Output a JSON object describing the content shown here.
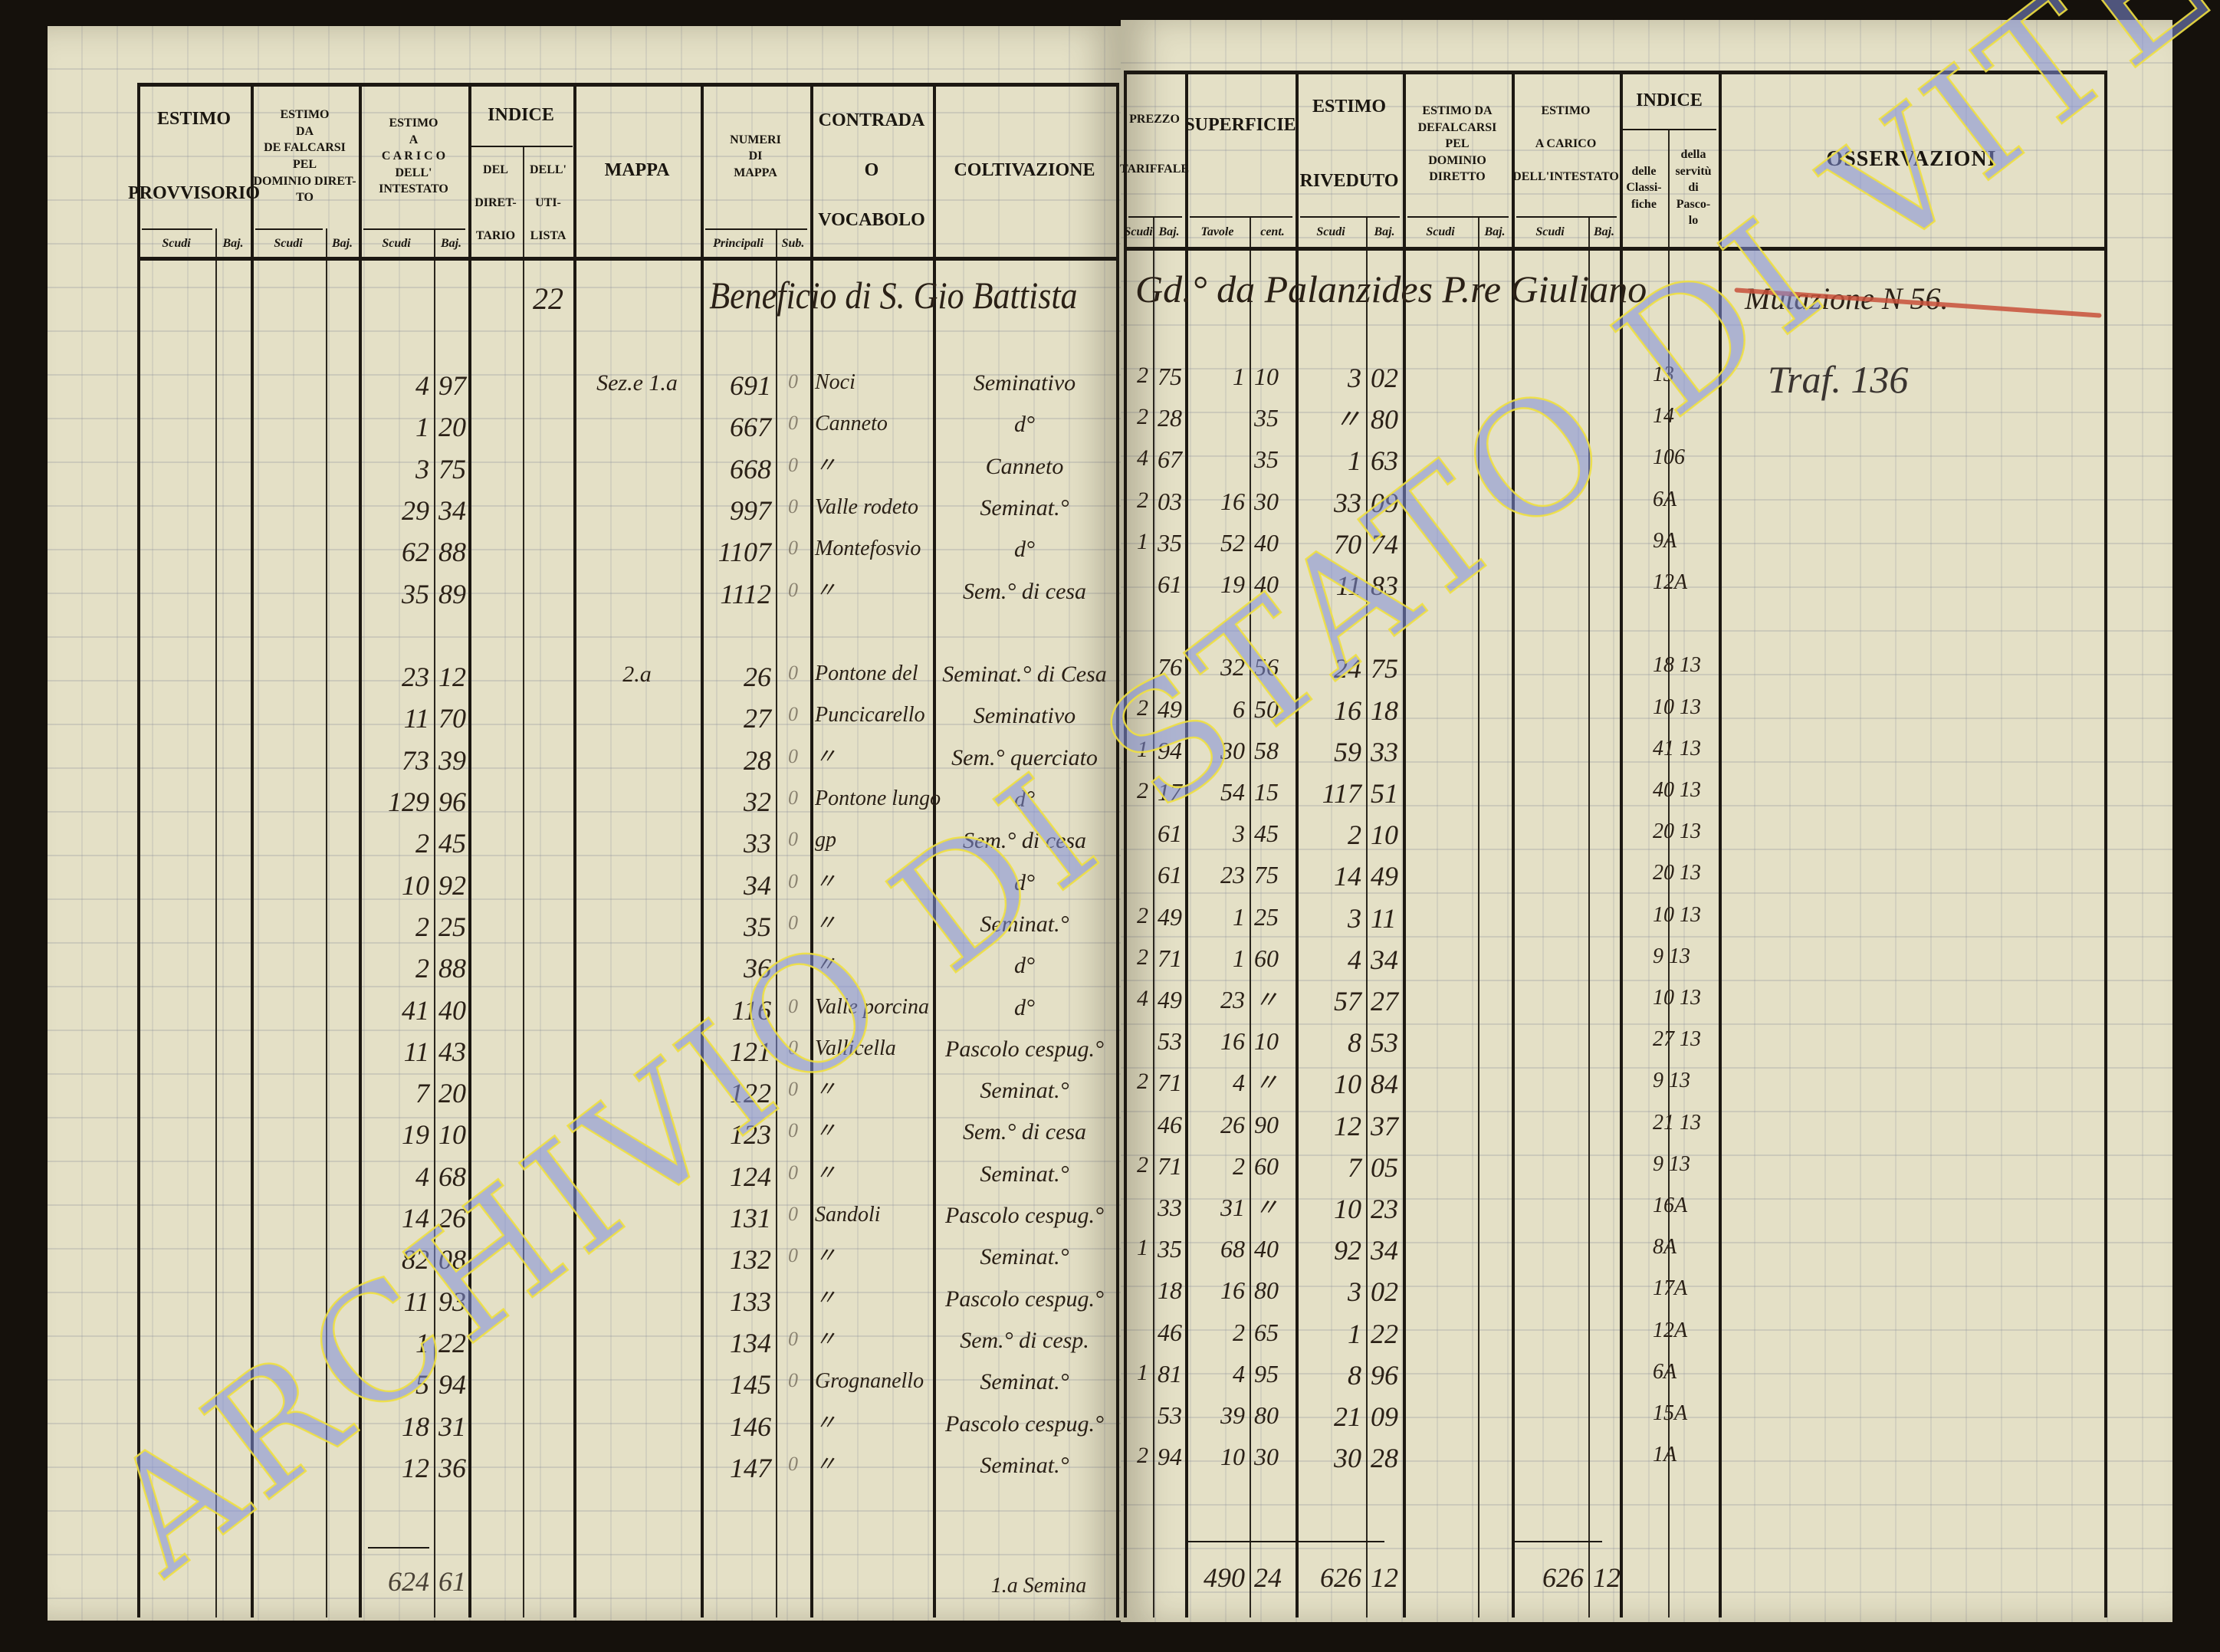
{
  "left_page": {
    "headers": {
      "estimo_provvisorio": "ESTIMO\n\n\nPROVVISORIO",
      "estimo_defalcarsi": "ESTIMO\nDA\nDE FALCARSI\nPEL\nDOMINIO DIRET-\nTO",
      "estimo_carico": "ESTIMO\nA\nC A R I C O\nDELL'\nINTESTATO",
      "indice": "INDICE",
      "indice_direttario": "DEL\n\nDIRET-\n\nTARIO",
      "indice_utilista": "DELL'\n\nUTI-\n\nLISTA",
      "mappa": "MAPPA",
      "numeri_di_mappa": "NUMERI\nDI\nMAPPA",
      "contrada": "CONTRADA\n\nO\n\nVOCABOLO",
      "coltivazione": "COLTIVAZIONE",
      "scudi": "Scudi",
      "baj": "Baj.",
      "principali": "Principali",
      "sub": "Sub."
    },
    "entry_index": "22",
    "entry_title": "Beneficio di S. Gio Battista",
    "rows": [
      {
        "carico_scudi": "4",
        "carico_baj": "97",
        "mappa": "Sez.e 1.a",
        "numero": "691",
        "sub": "0",
        "contrada": "Noci",
        "coltivazione": "Seminativo"
      },
      {
        "carico_scudi": "1",
        "carico_baj": "20",
        "mappa": "",
        "numero": "667",
        "sub": "0",
        "contrada": "Canneto",
        "coltivazione": "d°"
      },
      {
        "carico_scudi": "3",
        "carico_baj": "75",
        "mappa": "",
        "numero": "668",
        "sub": "0",
        "contrada": "〃",
        "coltivazione": "Canneto"
      },
      {
        "carico_scudi": "29",
        "carico_baj": "34",
        "mappa": "",
        "numero": "997",
        "sub": "0",
        "contrada": "Valle rodeto",
        "coltivazione": "Seminat.°"
      },
      {
        "carico_scudi": "62",
        "carico_baj": "88",
        "mappa": "",
        "numero": "1107",
        "sub": "0",
        "contrada": "Montefosvio",
        "coltivazione": "d°"
      },
      {
        "carico_scudi": "35",
        "carico_baj": "89",
        "mappa": "",
        "numero": "1112",
        "sub": "0",
        "contrada": "〃",
        "coltivazione": "Sem.° di cesa"
      },
      {
        "carico_scudi": "23",
        "carico_baj": "12",
        "mappa": "2.a",
        "numero": "26",
        "sub": "0",
        "contrada": "Pontone del",
        "coltivazione": "Seminat.° di Cesa"
      },
      {
        "carico_scudi": "11",
        "carico_baj": "70",
        "mappa": "",
        "numero": "27",
        "sub": "0",
        "contrada": "Puncicarello",
        "coltivazione": "Seminativo"
      },
      {
        "carico_scudi": "73",
        "carico_baj": "39",
        "mappa": "",
        "numero": "28",
        "sub": "0",
        "contrada": "〃",
        "coltivazione": "Sem.° querciato"
      },
      {
        "carico_scudi": "129",
        "carico_baj": "96",
        "mappa": "",
        "numero": "32",
        "sub": "0",
        "contrada": "Pontone lungo",
        "coltivazione": "d°"
      },
      {
        "carico_scudi": "2",
        "carico_baj": "45",
        "mappa": "",
        "numero": "33",
        "sub": "0",
        "contrada": "gp",
        "coltivazione": "Sem.° di cesa"
      },
      {
        "carico_scudi": "10",
        "carico_baj": "92",
        "mappa": "",
        "numero": "34",
        "sub": "0",
        "contrada": "〃",
        "coltivazione": "d°"
      },
      {
        "carico_scudi": "2",
        "carico_baj": "25",
        "mappa": "",
        "numero": "35",
        "sub": "0",
        "contrada": "〃",
        "coltivazione": "Seminat.°"
      },
      {
        "carico_scudi": "2",
        "carico_baj": "88",
        "mappa": "",
        "numero": "36",
        "sub": "",
        "contrada": "〃",
        "coltivazione": "d°"
      },
      {
        "carico_scudi": "41",
        "carico_baj": "40",
        "mappa": "",
        "numero": "116",
        "sub": "0",
        "contrada": "Valle porcina",
        "coltivazione": "d°"
      },
      {
        "carico_scudi": "11",
        "carico_baj": "43",
        "mappa": "",
        "numero": "121",
        "sub": "0",
        "contrada": "Vallicella",
        "coltivazione": "Pascolo cespug.°"
      },
      {
        "carico_scudi": "7",
        "carico_baj": "20",
        "mappa": "",
        "numero": "122",
        "sub": "0",
        "contrada": "〃",
        "coltivazione": "Seminat.°"
      },
      {
        "carico_scudi": "19",
        "carico_baj": "10",
        "mappa": "",
        "numero": "123",
        "sub": "0",
        "contrada": "〃",
        "coltivazione": "Sem.° di cesa"
      },
      {
        "carico_scudi": "4",
        "carico_baj": "68",
        "mappa": "",
        "numero": "124",
        "sub": "0",
        "contrada": "〃",
        "coltivazione": "Seminat.°"
      },
      {
        "carico_scudi": "14",
        "carico_baj": "26",
        "mappa": "",
        "numero": "131",
        "sub": "0",
        "contrada": "Sandoli",
        "coltivazione": "Pascolo cespug.°"
      },
      {
        "carico_scudi": "82",
        "carico_baj": "08",
        "mappa": "",
        "numero": "132",
        "sub": "0",
        "contrada": "〃",
        "coltivazione": "Seminat.°"
      },
      {
        "carico_scudi": "11",
        "carico_baj": "93",
        "mappa": "",
        "numero": "133",
        "sub": "",
        "contrada": "〃",
        "coltivazione": "Pascolo cespug.°"
      },
      {
        "carico_scudi": "1",
        "carico_baj": "22",
        "mappa": "",
        "numero": "134",
        "sub": "0",
        "contrada": "〃",
        "coltivazione": "Sem.° di cesp."
      },
      {
        "carico_scudi": "5",
        "carico_baj": "94",
        "mappa": "",
        "numero": "145",
        "sub": "0",
        "contrada": "Grognanello",
        "coltivazione": "Seminat.°"
      },
      {
        "carico_scudi": "18",
        "carico_baj": "31",
        "mappa": "",
        "numero": "146",
        "sub": "",
        "contrada": "〃",
        "coltivazione": "Pascolo cespug.°"
      },
      {
        "carico_scudi": "12",
        "carico_baj": "36",
        "mappa": "",
        "numero": "147",
        "sub": "0",
        "contrada": "〃",
        "coltivazione": "Seminat.°"
      }
    ],
    "total_carico_scudi": "624",
    "total_carico_baj": "61",
    "footer_note": "1.a Semina"
  },
  "right_page": {
    "headers": {
      "prezzo_tariffale": "PREZZO\n\n\nTARIFFALE",
      "superficie": "SUPERFICIE",
      "estimo_riveduto": "ESTIMO\n\n\nRIVEDUTO",
      "estimo_defalcarsi": "ESTIMO DA\nDEFALCARSI\nPEL\nDOMINIO\nDIRETTO",
      "estimo_carico": "ESTIMO\n\nA CARICO\n\nDELL'INTESTATO",
      "indice": "INDICE",
      "indice_classifiche": "delle\nClassi-\nfiche",
      "indice_servitu": "della\nservitù\ndi\nPasco-\nlo",
      "osservazioni": "OSSERVAZIONI",
      "scudi": "Scudi",
      "baj": "Baj.",
      "tavole": "Tavole",
      "cent": "cent."
    },
    "entry_title_cont": "Gd.° da Palanzides P.re Giuliano",
    "observations": {
      "struck_note": "Mutazione N 56.",
      "note": "Traf. 136",
      "strike_color": "#c8503a"
    },
    "rows": [
      {
        "prezzo_scudi": "2",
        "prezzo_baj": "75",
        "tavole": "1",
        "cent": "10",
        "riveduto_scudi": "3",
        "riveduto_baj": "02",
        "indice": "13"
      },
      {
        "prezzo_scudi": "2",
        "prezzo_baj": "28",
        "tavole": "",
        "cent": "35",
        "riveduto_scudi": "〃",
        "riveduto_baj": "80",
        "indice": "14"
      },
      {
        "prezzo_scudi": "4",
        "prezzo_baj": "67",
        "tavole": "",
        "cent": "35",
        "riveduto_scudi": "1",
        "riveduto_baj": "63",
        "indice": "106"
      },
      {
        "prezzo_scudi": "2",
        "prezzo_baj": "03",
        "tavole": "16",
        "cent": "30",
        "riveduto_scudi": "33",
        "riveduto_baj": "09",
        "indice": "6A"
      },
      {
        "prezzo_scudi": "1",
        "prezzo_baj": "35",
        "tavole": "52",
        "cent": "40",
        "riveduto_scudi": "70",
        "riveduto_baj": "74",
        "indice": "9A"
      },
      {
        "prezzo_scudi": "",
        "prezzo_baj": "61",
        "tavole": "19",
        "cent": "40",
        "riveduto_scudi": "11",
        "riveduto_baj": "83",
        "indice": "12A"
      },
      {
        "prezzo_scudi": "",
        "prezzo_baj": "76",
        "tavole": "32",
        "cent": "56",
        "riveduto_scudi": "24",
        "riveduto_baj": "75",
        "indice": "18 13"
      },
      {
        "prezzo_scudi": "2",
        "prezzo_baj": "49",
        "tavole": "6",
        "cent": "50",
        "riveduto_scudi": "16",
        "riveduto_baj": "18",
        "indice": "10 13"
      },
      {
        "prezzo_scudi": "1",
        "prezzo_baj": "94",
        "tavole": "30",
        "cent": "58",
        "riveduto_scudi": "59",
        "riveduto_baj": "33",
        "indice": "41 13"
      },
      {
        "prezzo_scudi": "2",
        "prezzo_baj": "17",
        "tavole": "54",
        "cent": "15",
        "riveduto_scudi": "117",
        "riveduto_baj": "51",
        "indice": "40 13"
      },
      {
        "prezzo_scudi": "",
        "prezzo_baj": "61",
        "tavole": "3",
        "cent": "45",
        "riveduto_scudi": "2",
        "riveduto_baj": "10",
        "indice": "20 13"
      },
      {
        "prezzo_scudi": "",
        "prezzo_baj": "61",
        "tavole": "23",
        "cent": "75",
        "riveduto_scudi": "14",
        "riveduto_baj": "49",
        "indice": "20 13"
      },
      {
        "prezzo_scudi": "2",
        "prezzo_baj": "49",
        "tavole": "1",
        "cent": "25",
        "riveduto_scudi": "3",
        "riveduto_baj": "11",
        "indice": "10 13"
      },
      {
        "prezzo_scudi": "2",
        "prezzo_baj": "71",
        "tavole": "1",
        "cent": "60",
        "riveduto_scudi": "4",
        "riveduto_baj": "34",
        "indice": "9 13"
      },
      {
        "prezzo_scudi": "4",
        "prezzo_baj": "49",
        "tavole": "23",
        "cent": "〃",
        "riveduto_scudi": "57",
        "riveduto_baj": "27",
        "indice": "10 13"
      },
      {
        "prezzo_scudi": "",
        "prezzo_baj": "53",
        "tavole": "16",
        "cent": "10",
        "riveduto_scudi": "8",
        "riveduto_baj": "53",
        "indice": "27 13"
      },
      {
        "prezzo_scudi": "2",
        "prezzo_baj": "71",
        "tavole": "4",
        "cent": "〃",
        "riveduto_scudi": "10",
        "riveduto_baj": "84",
        "indice": "9 13"
      },
      {
        "prezzo_scudi": "",
        "prezzo_baj": "46",
        "tavole": "26",
        "cent": "90",
        "riveduto_scudi": "12",
        "riveduto_baj": "37",
        "indice": "21 13"
      },
      {
        "prezzo_scudi": "2",
        "prezzo_baj": "71",
        "tavole": "2",
        "cent": "60",
        "riveduto_scudi": "7",
        "riveduto_baj": "05",
        "indice": "9 13"
      },
      {
        "prezzo_scudi": "",
        "prezzo_baj": "33",
        "tavole": "31",
        "cent": "〃",
        "riveduto_scudi": "10",
        "riveduto_baj": "23",
        "indice": "16A"
      },
      {
        "prezzo_scudi": "1",
        "prezzo_baj": "35",
        "tavole": "68",
        "cent": "40",
        "riveduto_scudi": "92",
        "riveduto_baj": "34",
        "indice": "8A"
      },
      {
        "prezzo_scudi": "",
        "prezzo_baj": "18",
        "tavole": "16",
        "cent": "80",
        "riveduto_scudi": "3",
        "riveduto_baj": "02",
        "indice": "17A"
      },
      {
        "prezzo_scudi": "",
        "prezzo_baj": "46",
        "tavole": "2",
        "cent": "65",
        "riveduto_scudi": "1",
        "riveduto_baj": "22",
        "indice": "12A"
      },
      {
        "prezzo_scudi": "1",
        "prezzo_baj": "81",
        "tavole": "4",
        "cent": "95",
        "riveduto_scudi": "8",
        "riveduto_baj": "96",
        "indice": "6A"
      },
      {
        "prezzo_scudi": "",
        "prezzo_baj": "53",
        "tavole": "39",
        "cent": "80",
        "riveduto_scudi": "21",
        "riveduto_baj": "09",
        "indice": "15A"
      },
      {
        "prezzo_scudi": "2",
        "prezzo_baj": "94",
        "tavole": "10",
        "cent": "30",
        "riveduto_scudi": "30",
        "riveduto_baj": "28",
        "indice": "1A"
      }
    ],
    "total_tavole": "490",
    "total_cent": "24",
    "total_riveduto_scudi": "626",
    "total_riveduto_baj": "12",
    "total_carico_scudi": "626",
    "total_carico_baj": "12"
  },
  "watermark": {
    "text": "ARCHIVIO DI STATO DI VITERBO",
    "fill_color": "#7f8ed8",
    "outline_color": "#f0e040"
  }
}
